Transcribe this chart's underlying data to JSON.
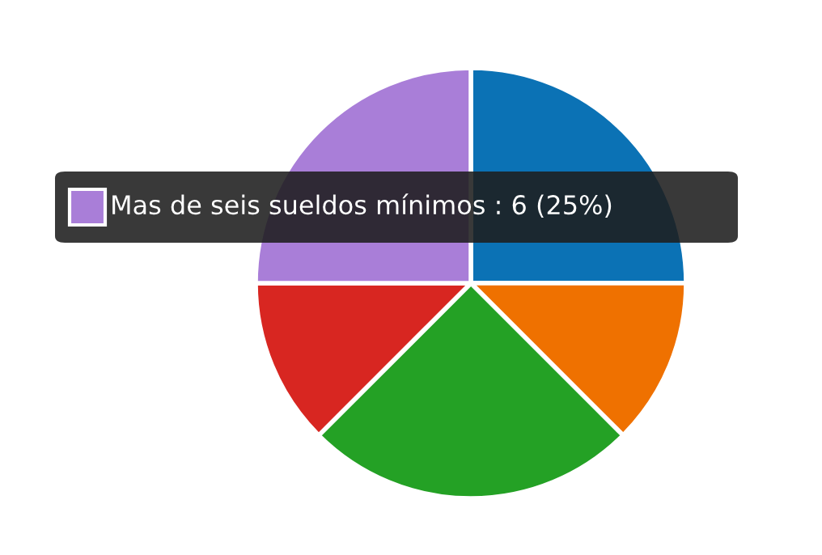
{
  "chart_data": {
    "type": "pie",
    "categories": [
      null,
      null,
      null,
      null,
      "Mas de seis sueldos mínimos"
    ],
    "values": [
      6,
      3,
      6,
      3,
      6
    ],
    "colors": [
      "#0b72b5",
      "#ef7100",
      "#24a125",
      "#d82621",
      "#a97ed8"
    ],
    "value_labels": [
      null,
      null,
      null,
      null,
      "6 (25%)"
    ]
  }
}
